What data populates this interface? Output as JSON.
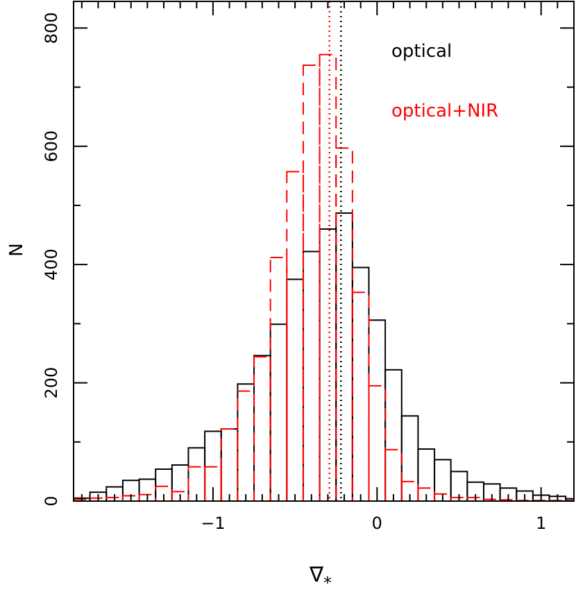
{
  "chart_data": {
    "type": "bar",
    "title": "",
    "xlabel": "∇",
    "xlabel_subscript": "*",
    "ylabel": "N",
    "xlim": [
      -1.85,
      1.2
    ],
    "ylim": [
      0,
      845
    ],
    "bin_edges": [
      -1.85,
      -1.75,
      -1.65,
      -1.55,
      -1.45,
      -1.35,
      -1.25,
      -1.15,
      -1.05,
      -0.95,
      -0.85,
      -0.75,
      -0.65,
      -0.55,
      -0.45,
      -0.35,
      -0.25,
      -0.15,
      -0.05,
      0.05,
      0.15,
      0.25,
      0.35,
      0.45,
      0.55,
      0.65,
      0.75,
      0.85,
      0.95,
      1.05,
      1.15,
      1.2
    ],
    "x_ticks": [
      -1,
      0,
      1
    ],
    "x_tick_labels": [
      "−1",
      "0",
      "1"
    ],
    "y_ticks": [
      0,
      200,
      400,
      600,
      800
    ],
    "y_tick_labels": [
      "0",
      "200",
      "400",
      "600",
      "800"
    ],
    "series": [
      {
        "name": "optical",
        "color": "#000000",
        "style": "solid",
        "values": [
          5,
          15,
          24,
          35,
          37,
          54,
          61,
          90,
          118,
          122,
          198,
          246,
          299,
          375,
          422,
          460,
          487,
          395,
          306,
          222,
          144,
          88,
          70,
          50,
          32,
          29,
          22,
          17,
          10,
          8,
          4
        ],
        "median_line": -0.22
      },
      {
        "name": "optical+NIR",
        "color": "#ff0000",
        "style": "dashed",
        "values": [
          3,
          5,
          6,
          9,
          11,
          25,
          16,
          58,
          58,
          122,
          186,
          244,
          412,
          557,
          737,
          755,
          597,
          353,
          195,
          87,
          33,
          22,
          12,
          6,
          6,
          3,
          2,
          1,
          1,
          1,
          1
        ],
        "median_line": -0.29
      }
    ],
    "legend_placement": "top-right",
    "grid": false
  }
}
